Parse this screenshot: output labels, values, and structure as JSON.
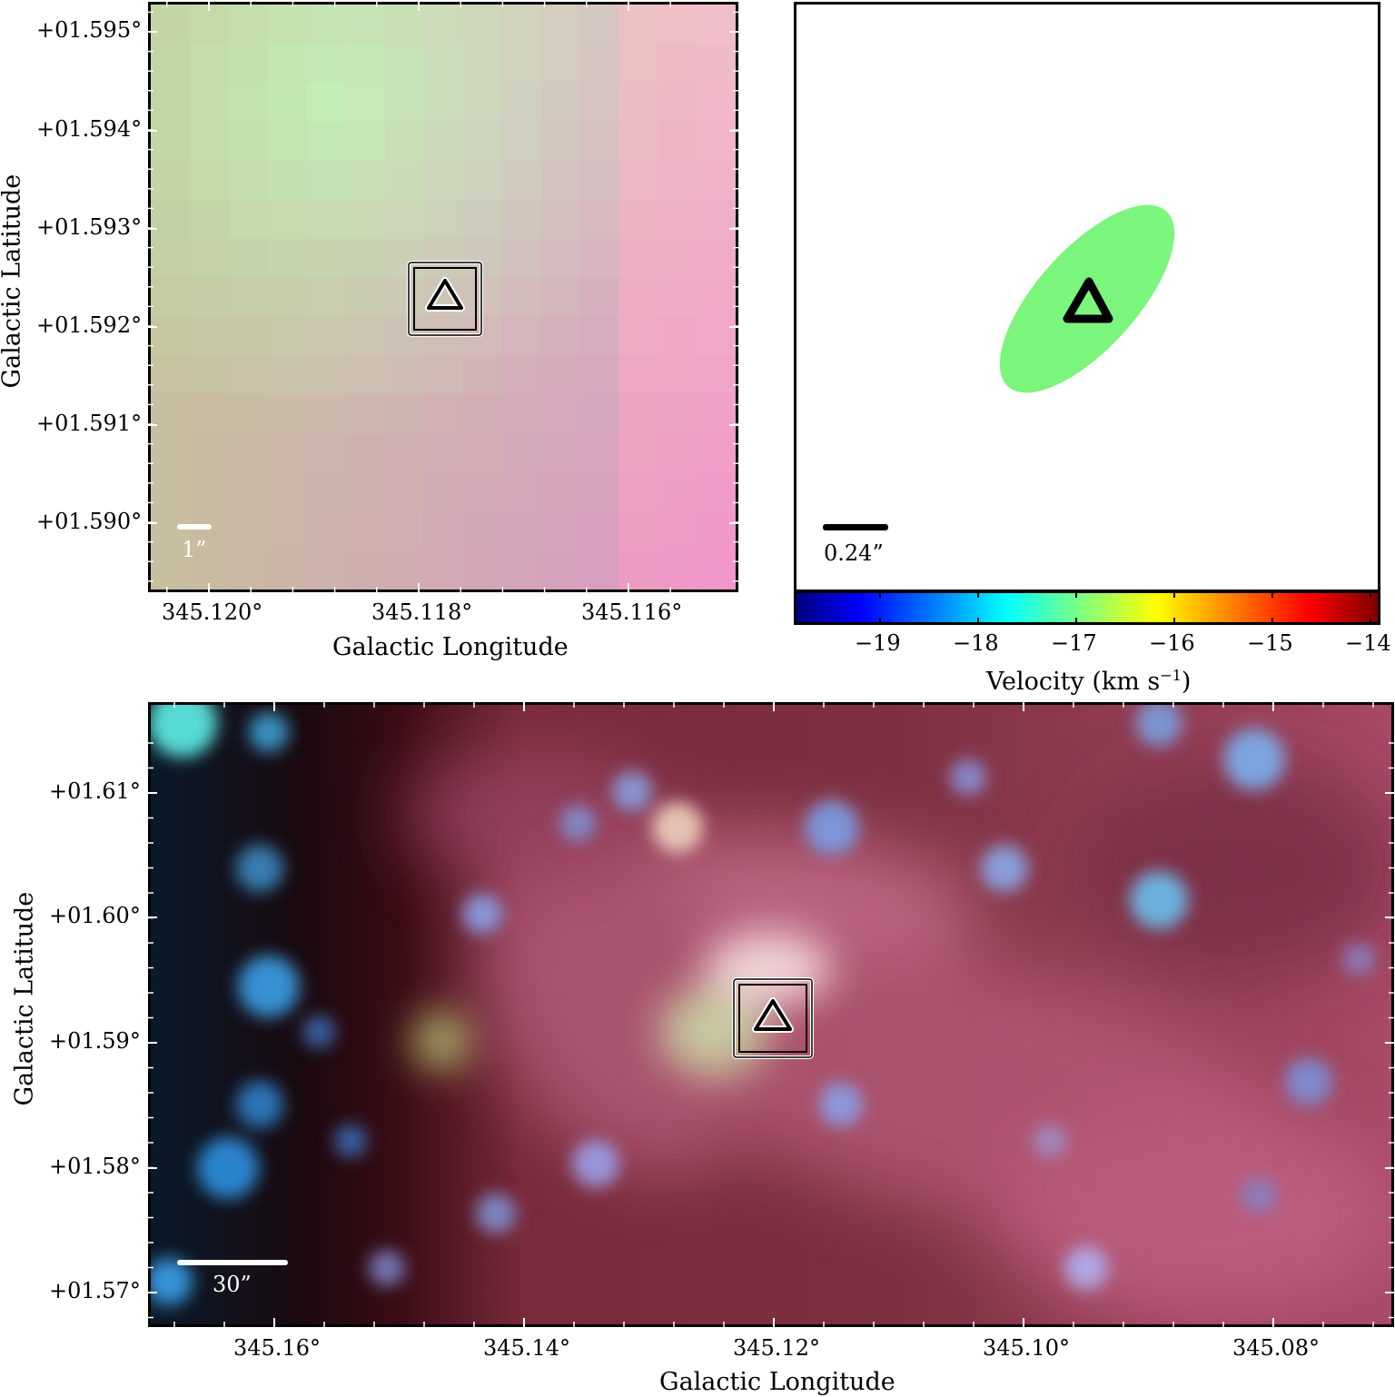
{
  "panel_tl": {
    "y_ticks": [
      "+01.595°",
      "+01.594°",
      "+01.593°",
      "+01.592°",
      "+01.591°",
      "+01.590°"
    ],
    "x_ticks": [
      "345.120°",
      "345.118°",
      "345.116°"
    ],
    "x_title": "Galactic Longitude",
    "y_title": "Galactic Latitude",
    "scalebar": "1”"
  },
  "panel_tr": {
    "scalebar": "0.24”",
    "colorbar_ticks": [
      "−19",
      "−18",
      "−17",
      "−16",
      "−15",
      "−14"
    ],
    "colorbar_title": "Velocity (km s",
    "colorbar_title_exp": "−1",
    "colorbar_title_end": ")",
    "ellipse_color": "#7cf57c"
  },
  "panel_bottom": {
    "y_ticks": [
      "+01.61°",
      "+01.60°",
      "+01.59°",
      "+01.58°",
      "+01.57°"
    ],
    "x_ticks": [
      "345.16°",
      "345.14°",
      "345.12°",
      "345.10°",
      "345.08°"
    ],
    "x_title": "Galactic Longitude",
    "y_title": "Galactic Latitude",
    "scalebar": "30”"
  }
}
